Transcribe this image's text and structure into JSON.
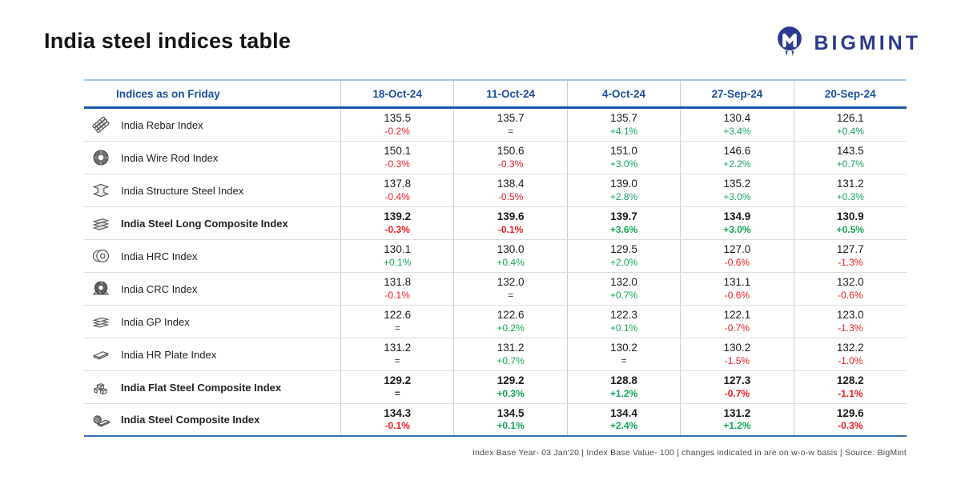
{
  "header": {
    "title": "India steel indices table"
  },
  "logo": {
    "brand": "BIGMINT"
  },
  "chart_data": {
    "type": "table",
    "title": "India steel indices table",
    "header_label": "Indices as on Friday",
    "columns": [
      "18-Oct-24",
      "11-Oct-24",
      "4-Oct-24",
      "27-Sep-24",
      "20-Sep-24"
    ],
    "rows": [
      {
        "name": "India Rebar Index",
        "icon": "rebar-icon",
        "emphasis": false,
        "values": [
          135.5,
          135.7,
          135.7,
          130.4,
          126.1
        ],
        "wow_changes": [
          "-0.2%",
          "=",
          "+4.1%",
          "+3.4%",
          "+0.4%"
        ]
      },
      {
        "name": "India Wire Rod Index",
        "icon": "wire-rod-icon",
        "emphasis": false,
        "values": [
          150.1,
          150.6,
          151.0,
          146.6,
          143.5
        ],
        "wow_changes": [
          "-0.3%",
          "-0.3%",
          "+3.0%",
          "+2.2%",
          "+0.7%"
        ]
      },
      {
        "name": "India Structure Steel Index",
        "icon": "structure-steel-icon",
        "emphasis": false,
        "values": [
          137.8,
          138.4,
          139.0,
          135.2,
          131.2
        ],
        "wow_changes": [
          "-0.4%",
          "-0.5%",
          "+2.8%",
          "+3.0%",
          "+0.3%"
        ]
      },
      {
        "name": "India Steel Long Composite Index",
        "icon": "long-composite-icon",
        "emphasis": true,
        "values": [
          139.2,
          139.6,
          139.7,
          134.9,
          130.9
        ],
        "wow_changes": [
          "-0.3%",
          "-0.1%",
          "+3.6%",
          "+3.0%",
          "+0.5%"
        ]
      },
      {
        "name": "India HRC Index",
        "icon": "hrc-coil-icon",
        "emphasis": false,
        "values": [
          130.1,
          130.0,
          129.5,
          127.0,
          127.7
        ],
        "wow_changes": [
          "+0.1%",
          "+0.4%",
          "+2.0%",
          "-0.6%",
          "-1.3%"
        ]
      },
      {
        "name": "India CRC Index",
        "icon": "crc-coil-icon",
        "emphasis": false,
        "values": [
          131.8,
          132.0,
          132.0,
          131.1,
          132.0
        ],
        "wow_changes": [
          "-0.1%",
          "=",
          "+0.7%",
          "-0.6%",
          "-0.6%"
        ]
      },
      {
        "name": "India GP Index",
        "icon": "gp-sheets-icon",
        "emphasis": false,
        "values": [
          122.6,
          122.6,
          122.3,
          122.1,
          123.0
        ],
        "wow_changes": [
          "=",
          "+0.2%",
          "+0.1%",
          "-0.7%",
          "-1.3%"
        ]
      },
      {
        "name": "India HR Plate Index",
        "icon": "hr-plate-icon",
        "emphasis": false,
        "values": [
          131.2,
          131.2,
          130.2,
          130.2,
          132.2
        ],
        "wow_changes": [
          "=",
          "+0.7%",
          "=",
          "-1.5%",
          "-1.0%"
        ]
      },
      {
        "name": "India Flat Steel Composite Index",
        "icon": "flat-composite-icon",
        "emphasis": true,
        "values": [
          129.2,
          129.2,
          128.8,
          127.3,
          128.2
        ],
        "wow_changes": [
          "=",
          "+0.3%",
          "+1.2%",
          "-0.7%",
          "-1.1%"
        ]
      },
      {
        "name": "India Steel Composite Index",
        "icon": "steel-composite-icon",
        "emphasis": true,
        "values": [
          134.3,
          134.5,
          134.4,
          131.2,
          129.6
        ],
        "wow_changes": [
          "-0.1%",
          "+0.1%",
          "+2.4%",
          "+1.2%",
          "-0.3%"
        ]
      }
    ]
  },
  "footer": {
    "note": "Index Base Year- 03 Jan'20 | Index Base Value- 100 | changes indicated in are on w-o-w basis | Source: BigMint"
  },
  "colors": {
    "accent_blue": "#1B4F9C",
    "logo_navy": "#2B3990",
    "positive_green": "#16A45A",
    "negative_red": "#EC1C24",
    "neutral_dark": "#3D3D3D"
  }
}
